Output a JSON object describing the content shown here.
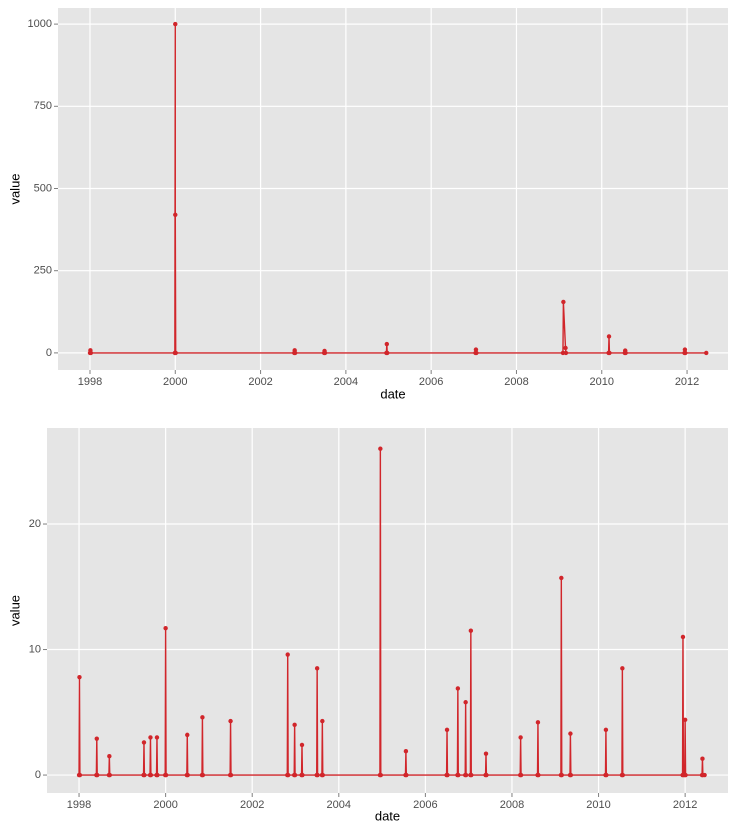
{
  "chart_data": [
    {
      "type": "line",
      "x_label": "date",
      "y_label": "value",
      "grid": true,
      "xlim": [
        1997.25,
        2012.96
      ],
      "xticks": [
        1998,
        2000,
        2002,
        2004,
        2006,
        2008,
        2010,
        2012
      ],
      "ylim": [
        -52,
        1049
      ],
      "yticks": [
        0,
        250,
        500,
        750,
        1000
      ],
      "series": [
        {
          "color": "#d1262b",
          "x": [
            1998.0,
            1998.01,
            1998.02,
            1999.99,
            2000.0,
            2000.0,
            2000.01,
            2002.79,
            2002.8,
            2002.81,
            2003.49,
            2003.5,
            2003.51,
            2004.95,
            2004.96,
            2004.97,
            2007.04,
            2007.05,
            2007.06,
            2009.09,
            2009.1,
            2009.15,
            2009.16,
            2010.16,
            2010.17,
            2010.18,
            2010.54,
            2010.55,
            2010.56,
            2011.94,
            2011.95,
            2011.96,
            2012.45
          ],
          "values": [
            0,
            8,
            0,
            0,
            1000,
            420,
            0,
            0,
            8,
            0,
            0,
            6,
            0,
            0,
            27,
            0,
            0,
            10,
            0,
            0,
            155,
            15,
            0,
            0,
            50,
            0,
            0,
            7,
            0,
            0,
            10,
            0,
            0
          ]
        }
      ]
    },
    {
      "type": "line",
      "x_label": "date",
      "y_label": "value",
      "grid": true,
      "xlim": [
        1997.26,
        2012.99
      ],
      "xticks": [
        1998,
        2000,
        2002,
        2004,
        2006,
        2008,
        2010,
        2012
      ],
      "ylim": [
        -1.43,
        27.65
      ],
      "yticks": [
        0,
        10,
        20
      ],
      "series": [
        {
          "color": "#d1262b",
          "x": [
            1998.0,
            1998.01,
            1998.02,
            1998.4,
            1998.41,
            1998.42,
            1998.69,
            1998.7,
            1998.71,
            1999.49,
            1999.5,
            1999.51,
            1999.64,
            1999.65,
            1999.66,
            1999.79,
            1999.8,
            1999.81,
            1999.99,
            2000.0,
            2000.01,
            2000.49,
            2000.5,
            2000.51,
            2000.84,
            2000.85,
            2000.86,
            2001.49,
            2001.5,
            2001.51,
            2002.81,
            2002.82,
            2002.83,
            2002.97,
            2002.98,
            2002.99,
            2003.14,
            2003.15,
            2003.16,
            2003.49,
            2003.5,
            2003.51,
            2003.61,
            2003.62,
            2003.63,
            2004.95,
            2004.96,
            2004.97,
            2005.54,
            2005.55,
            2005.56,
            2006.49,
            2006.5,
            2006.51,
            2006.74,
            2006.75,
            2006.76,
            2006.92,
            2006.93,
            2006.94,
            2007.04,
            2007.05,
            2007.06,
            2007.39,
            2007.4,
            2007.41,
            2008.19,
            2008.2,
            2008.21,
            2008.59,
            2008.6,
            2008.61,
            2009.13,
            2009.14,
            2009.15,
            2009.34,
            2009.35,
            2009.36,
            2010.16,
            2010.17,
            2010.18,
            2010.54,
            2010.55,
            2010.56,
            2011.94,
            2011.95,
            2011.96,
            2011.99,
            2012.0,
            2012.01,
            2012.39,
            2012.4,
            2012.41,
            2012.45
          ],
          "values": [
            0,
            7.8,
            0,
            0,
            2.9,
            0,
            0,
            1.5,
            0,
            0,
            2.6,
            0,
            0,
            3.0,
            0,
            0,
            3.0,
            0,
            0,
            11.7,
            0,
            0,
            3.2,
            0,
            0,
            4.6,
            0,
            0,
            4.3,
            0,
            0,
            9.6,
            0,
            0,
            4.0,
            0,
            0,
            2.4,
            0,
            0,
            8.5,
            0,
            0,
            4.3,
            0,
            0,
            26.0,
            0,
            0,
            1.9,
            0,
            0,
            3.6,
            0,
            0,
            6.9,
            0,
            0,
            5.8,
            0,
            0,
            11.5,
            0,
            0,
            1.7,
            0,
            0,
            3.0,
            0,
            0,
            4.2,
            0,
            0,
            15.7,
            0,
            0,
            3.3,
            0,
            0,
            3.6,
            0,
            0,
            8.5,
            0,
            0,
            11.0,
            0,
            0,
            4.4,
            0,
            0,
            1.3,
            0,
            0
          ]
        }
      ]
    }
  ]
}
